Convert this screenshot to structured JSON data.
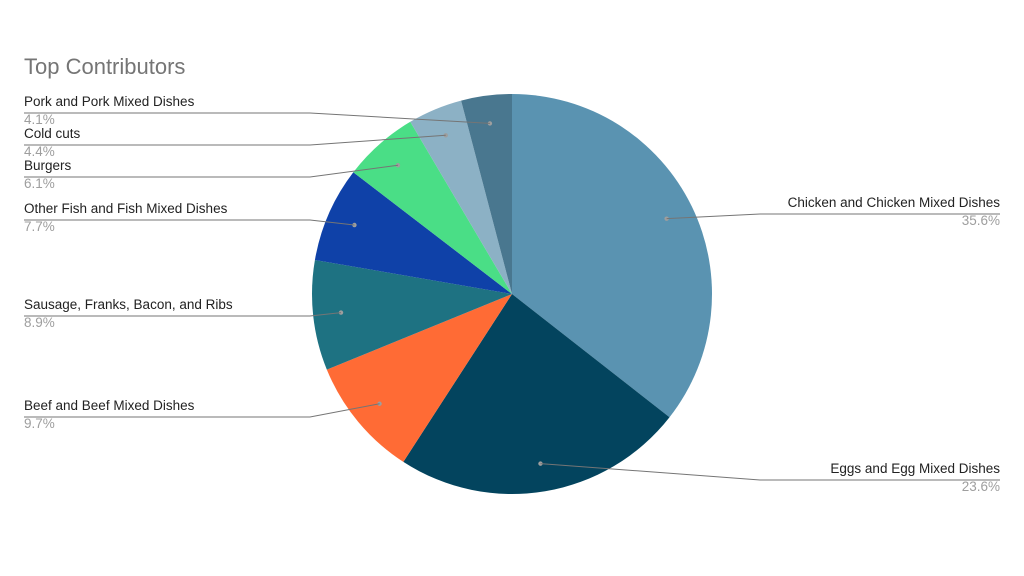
{
  "chart_data": {
    "type": "pie",
    "title": "Top Contributors",
    "slices": [
      {
        "label": "Chicken and Chicken Mixed Dishes",
        "pct_label": "35.6%",
        "value": 35.6,
        "color": "#5a93b1"
      },
      {
        "label": "Eggs and Egg Mixed Dishes",
        "pct_label": "23.6%",
        "value": 23.6,
        "color": "#03445e"
      },
      {
        "label": "Beef and Beef Mixed Dishes",
        "pct_label": "9.7%",
        "value": 9.7,
        "color": "#ff6b35"
      },
      {
        "label": "Sausage, Franks, Bacon, and Ribs",
        "pct_label": "8.9%",
        "value": 8.9,
        "color": "#1e7282"
      },
      {
        "label": "Other Fish and Fish Mixed Dishes",
        "pct_label": "7.7%",
        "value": 7.7,
        "color": "#0f41a8"
      },
      {
        "label": "Burgers",
        "pct_label": "6.1%",
        "value": 6.1,
        "color": "#4ade86"
      },
      {
        "label": "Cold cuts",
        "pct_label": "4.4%",
        "value": 4.4,
        "color": "#8cb1c5"
      },
      {
        "label": "Pork and Pork Mixed Dishes",
        "pct_label": "4.1%",
        "value": 4.1,
        "color": "#49778f"
      }
    ],
    "legend": "none",
    "label_style": "leader-lines"
  }
}
